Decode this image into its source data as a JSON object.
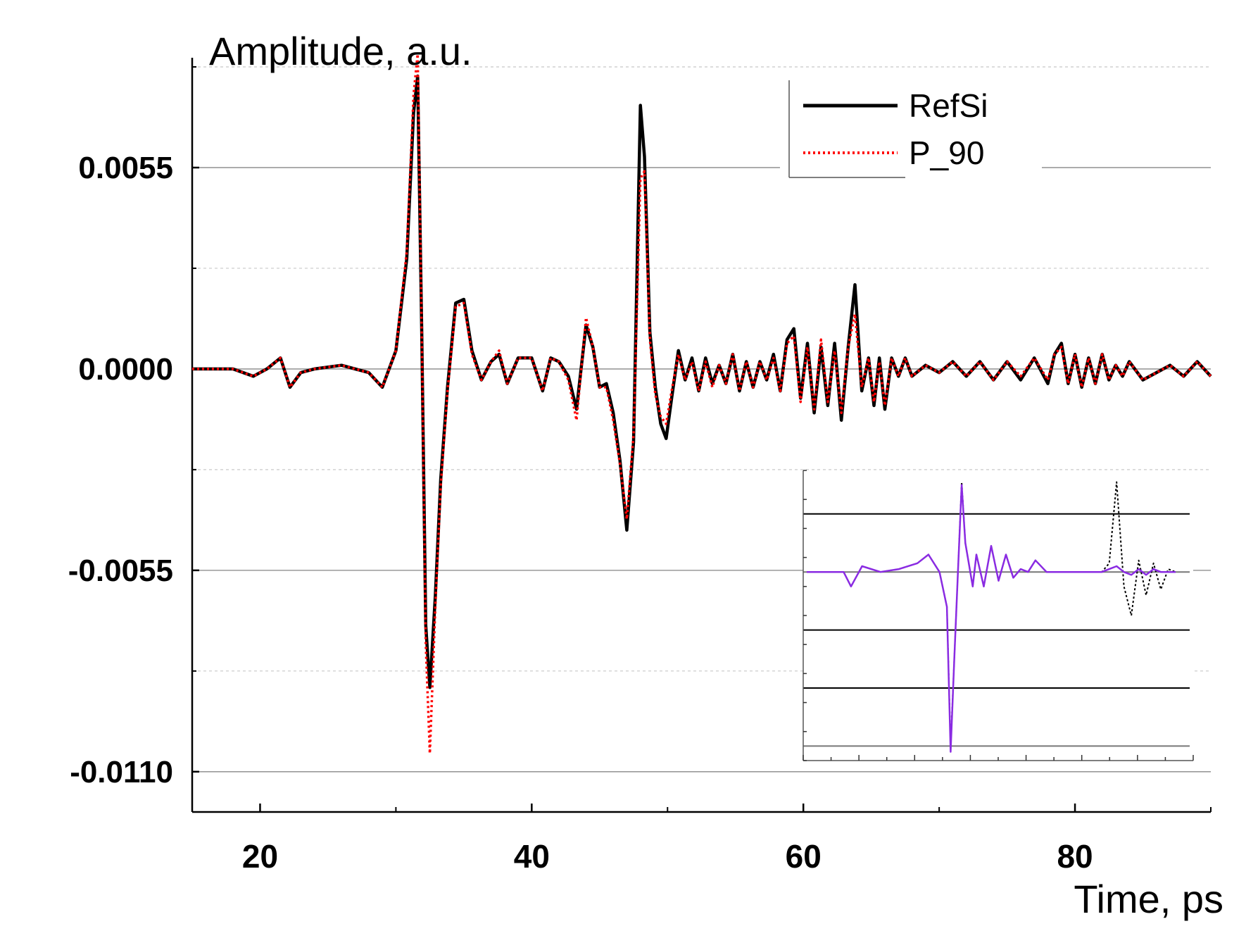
{
  "chart_data": {
    "type": "line",
    "title": "",
    "xlabel": "Time, ps",
    "ylabel": "Amplitude, a.u.",
    "xlim": [
      15,
      90
    ],
    "ylim": [
      -0.0121,
      0.0085
    ],
    "xticks": [
      20,
      40,
      60,
      80
    ],
    "xtick_labels": [
      "20",
      "40",
      "60",
      "80"
    ],
    "yticks": [
      0.0055,
      0.0,
      -0.0055,
      -0.011
    ],
    "ytick_labels": [
      "0.0055",
      "0.0000",
      "-0.0055",
      "-0.0110"
    ],
    "grid": true,
    "legend_position": "top-right",
    "series": [
      {
        "name": "RefSi",
        "color": "#000000",
        "style": "solid",
        "x": [
          15,
          18,
          19.5,
          20.5,
          21.5,
          22.2,
          23,
          24,
          26,
          28,
          29,
          30,
          30.8,
          31.3,
          31.6,
          31.9,
          32.2,
          32.5,
          32.9,
          33.3,
          33.8,
          34.4,
          35,
          35.6,
          36.3,
          37,
          37.6,
          38.2,
          39,
          40,
          40.8,
          41.4,
          42,
          42.7,
          43.3,
          44,
          44.5,
          45,
          45.5,
          46,
          46.5,
          47,
          47.5,
          48,
          48.3,
          48.7,
          49.1,
          49.5,
          49.9,
          50.3,
          50.8,
          51.3,
          51.8,
          52.3,
          52.8,
          53.3,
          53.8,
          54.3,
          54.8,
          55.3,
          55.8,
          56.3,
          56.8,
          57.3,
          57.8,
          58.3,
          58.8,
          59.3,
          59.8,
          60.3,
          60.8,
          61.3,
          61.8,
          62.3,
          62.8,
          63.3,
          63.8,
          64.3,
          64.8,
          65.2,
          65.6,
          66,
          66.5,
          67,
          67.5,
          68,
          69,
          70,
          71,
          72,
          73,
          74,
          75,
          76,
          77,
          78,
          78.5,
          79,
          79.5,
          80,
          80.5,
          81,
          81.5,
          82,
          82.5,
          83,
          83.5,
          84,
          85,
          86,
          87,
          88,
          89,
          90
        ],
        "y": [
          0,
          0,
          -0.0002,
          0,
          0.0003,
          -0.0005,
          -0.0001,
          0,
          0.0001,
          -0.0001,
          -0.0005,
          0.0005,
          0.003,
          0.007,
          0.008,
          0.001,
          -0.007,
          -0.0087,
          -0.0062,
          -0.003,
          -0.0005,
          0.0018,
          0.0019,
          0.0005,
          -0.0003,
          0.0002,
          0.0004,
          -0.0004,
          0.0003,
          0.0003,
          -0.0006,
          0.0003,
          0.0002,
          -0.0002,
          -0.0011,
          0.0012,
          0.0006,
          -0.0005,
          -0.0004,
          -0.0012,
          -0.0025,
          -0.0044,
          -0.002,
          0.0072,
          0.0058,
          0.001,
          -0.0005,
          -0.0015,
          -0.0019,
          -0.0008,
          0.0005,
          -0.0003,
          0.0003,
          -0.0006,
          0.0003,
          -0.0004,
          0.0001,
          -0.0004,
          0.0004,
          -0.0006,
          0.0002,
          -0.0005,
          0.0002,
          -0.0003,
          0.0004,
          -0.0006,
          0.0008,
          0.0011,
          -0.0008,
          0.0007,
          -0.0012,
          0.0006,
          -0.001,
          0.0007,
          -0.0014,
          0.0006,
          0.0023,
          -0.0006,
          0.0003,
          -0.001,
          0.0003,
          -0.0011,
          0.0003,
          -0.0002,
          0.0003,
          -0.0002,
          0.0001,
          -0.0001,
          0.0002,
          -0.0002,
          0.0002,
          -0.0003,
          0.0002,
          -0.0003,
          0.0003,
          -0.0004,
          0.0004,
          0.0007,
          -0.0004,
          0.0004,
          -0.0005,
          0.0003,
          -0.0004,
          0.0004,
          -0.0003,
          0.0001,
          -0.0002,
          0.0002,
          -0.0003,
          -0.0001,
          0.0001,
          -0.0002,
          0.0002,
          -0.0002
        ]
      },
      {
        "name": "P_90",
        "color": "#ff0000",
        "style": "dotted",
        "x": [
          15,
          18,
          19.5,
          20.5,
          21.5,
          22.2,
          23,
          24,
          26,
          28,
          29,
          30,
          30.8,
          31.3,
          31.6,
          31.9,
          32.2,
          32.5,
          32.9,
          33.3,
          33.8,
          34.4,
          35,
          35.6,
          36.3,
          37,
          37.6,
          38.2,
          39,
          40,
          40.8,
          41.4,
          42,
          42.7,
          43.3,
          44,
          44.5,
          45,
          45.5,
          46,
          46.5,
          47,
          47.5,
          48,
          48.3,
          48.7,
          49.1,
          49.5,
          49.9,
          50.3,
          50.8,
          51.3,
          51.8,
          52.3,
          52.8,
          53.3,
          53.8,
          54.3,
          54.8,
          55.3,
          55.8,
          56.3,
          56.8,
          57.3,
          57.8,
          58.3,
          58.8,
          59.3,
          59.8,
          60.3,
          60.8,
          61.3,
          61.8,
          62.3,
          62.8,
          63.3,
          63.8,
          64.3,
          64.8,
          65.2,
          65.6,
          66,
          66.5,
          67,
          67.5,
          68,
          69,
          70,
          71,
          72,
          73,
          74,
          75,
          76,
          77,
          78,
          78.5,
          79,
          79.5,
          80,
          80.5,
          81,
          81.5,
          82,
          82.5,
          83,
          83.5,
          84,
          85,
          86,
          87,
          88,
          89,
          90
        ],
        "y": [
          0,
          0,
          -0.0002,
          0,
          0.0003,
          -0.0005,
          -0.0001,
          0,
          0.0001,
          -0.0001,
          -0.0005,
          0.0005,
          0.0032,
          0.0075,
          0.0086,
          0.001,
          -0.0075,
          -0.0105,
          -0.0065,
          -0.0032,
          -0.0006,
          0.0017,
          0.0018,
          0.0004,
          -0.0003,
          0.0002,
          0.0005,
          -0.0004,
          0.0003,
          0.0003,
          -0.0006,
          0.0003,
          0.0002,
          -0.0003,
          -0.0014,
          0.0014,
          0.0006,
          -0.0005,
          -0.0005,
          -0.0014,
          -0.0026,
          -0.0041,
          -0.0018,
          0.0052,
          0.0054,
          0.0008,
          -0.0007,
          -0.0013,
          -0.0015,
          -0.0006,
          0.0004,
          -0.0003,
          0.0002,
          -0.0006,
          0.0002,
          -0.0005,
          0.0001,
          -0.0004,
          0.0004,
          -0.0006,
          0.0002,
          -0.0005,
          0.0002,
          -0.0003,
          0.0003,
          -0.0006,
          0.0007,
          0.0009,
          -0.0009,
          0.0006,
          -0.0011,
          0.0008,
          -0.0009,
          0.0005,
          -0.0012,
          0.0006,
          0.0015,
          -0.0005,
          0.0003,
          -0.0009,
          0.0002,
          -0.001,
          0.0003,
          -0.0002,
          0.0003,
          -0.0002,
          0.0001,
          -0.0001,
          0.0002,
          -0.0002,
          0.0002,
          -0.0003,
          0.0002,
          -0.0002,
          0.0003,
          -0.0003,
          0.0004,
          0.0006,
          -0.0004,
          0.0004,
          -0.0005,
          0.0003,
          -0.0004,
          0.0004,
          -0.0003,
          0.0001,
          -0.0002,
          0.0002,
          -0.0003,
          -0.0001,
          0.0001,
          -0.0002,
          0.0002,
          -0.0002
        ]
      }
    ],
    "inset": {
      "type": "line",
      "series": [
        {
          "color": "#000000",
          "style": "dotted",
          "x": [
            0,
            0.05,
            0.1,
            0.12,
            0.15,
            0.2,
            0.25,
            0.3,
            0.33,
            0.36,
            0.38,
            0.39,
            0.4,
            0.41,
            0.42,
            0.43,
            0.45,
            0.46,
            0.48,
            0.5,
            0.52,
            0.54,
            0.56,
            0.58,
            0.6,
            0.62,
            0.65,
            0.67,
            0.7,
            0.75,
            0.8,
            0.82,
            0.84,
            0.86,
            0.88,
            0.9,
            0.92,
            0.94,
            0.96,
            0.98,
            1
          ],
          "y": [
            0,
            0,
            0,
            -0.5,
            0.2,
            0,
            0.1,
            0.3,
            0.6,
            0,
            -1.2,
            -6,
            -3,
            0,
            3.1,
            1,
            -0.5,
            0.6,
            -0.5,
            0.9,
            -0.3,
            0.6,
            -0.2,
            0.1,
            0,
            0.4,
            0,
            0,
            0,
            0,
            0,
            0.3,
            3.1,
            -0.5,
            -1.5,
            0.4,
            -0.8,
            0.3,
            -0.6,
            0.1,
            0
          ]
        },
        {
          "color": "#8a2be2",
          "style": "solid",
          "x": [
            0,
            0.05,
            0.1,
            0.12,
            0.15,
            0.2,
            0.25,
            0.3,
            0.33,
            0.36,
            0.38,
            0.39,
            0.4,
            0.41,
            0.42,
            0.43,
            0.45,
            0.46,
            0.48,
            0.5,
            0.52,
            0.54,
            0.56,
            0.58,
            0.6,
            0.62,
            0.65,
            0.67,
            0.7,
            0.75,
            0.8,
            0.82,
            0.84,
            0.86,
            0.88,
            0.9,
            0.92,
            0.94,
            0.96,
            0.98,
            1
          ],
          "y": [
            0,
            0,
            0,
            -0.5,
            0.2,
            0,
            0.1,
            0.3,
            0.6,
            0,
            -1.2,
            -6.2,
            -3,
            0,
            3,
            1,
            -0.5,
            0.6,
            -0.5,
            0.9,
            -0.3,
            0.6,
            -0.2,
            0.1,
            0,
            0.4,
            0,
            0,
            0,
            0,
            0,
            0.1,
            0.2,
            0,
            -0.1,
            0.1,
            -0.1,
            0.1,
            0,
            0,
            0
          ]
        }
      ],
      "xlim": [
        0,
        1
      ],
      "ylim": [
        -6.5,
        3.5
      ],
      "gridlines_y": [
        2,
        0,
        -2,
        -4,
        -6
      ]
    }
  }
}
